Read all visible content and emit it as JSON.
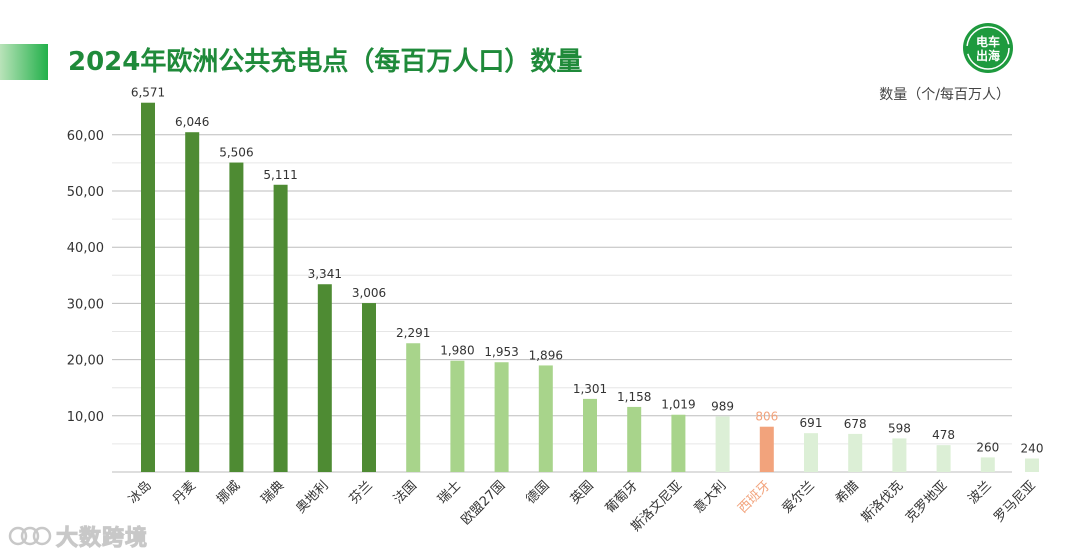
{
  "header": {
    "title": "2024年欧洲公共充电点（每百万人口）数量",
    "unit": "数量（个/每百万人）",
    "logo_text": "电车出海",
    "watermark": "大数跨境"
  },
  "colors": {
    "dark_green": "#4e8b33",
    "light_green": "#a8d48b",
    "pale_green": "#dcefd6",
    "highlight": "#f2a37c",
    "grid": "#cfcfcf",
    "title_green": "#1f8a3a"
  },
  "chart_data": {
    "type": "bar",
    "title": "2024年欧洲公共充电点（每百万人口）数量",
    "ylabel": "数量（个/每百万人）",
    "ylim": [
      0,
      6571
    ],
    "yticks": [
      "10,00",
      "20,00",
      "30,00",
      "40,00",
      "50,00",
      "60,00"
    ],
    "categories": [
      "冰岛",
      "丹麦",
      "挪威",
      "瑞典",
      "奥地利",
      "芬兰",
      "法国",
      "瑞士",
      "欧盟27国",
      "德国",
      "英国",
      "葡萄牙",
      "斯洛文尼亚",
      "意大利",
      "西班牙",
      "爱尔兰",
      "希腊",
      "斯洛伐克",
      "克罗地亚",
      "波兰",
      "罗马尼亚"
    ],
    "values": [
      6571,
      6046,
      5506,
      5111,
      3341,
      3006,
      2291,
      1980,
      1953,
      1896,
      1301,
      1158,
      1019,
      989,
      806,
      691,
      678,
      598,
      478,
      260,
      240
    ],
    "value_labels": [
      "6,571",
      "6,046",
      "5,506",
      "5,111",
      "3,341",
      "3,006",
      "2,291",
      "1,980",
      "1,953",
      "1,896",
      "1,301",
      "1,158",
      "1,019",
      "989",
      "806",
      "691",
      "678",
      "598",
      "478",
      "260",
      "240"
    ],
    "tiers": [
      "dark",
      "dark",
      "dark",
      "dark",
      "dark",
      "dark",
      "light",
      "light",
      "light",
      "light",
      "light",
      "light",
      "light",
      "pale",
      "highlight",
      "pale",
      "pale",
      "pale",
      "pale",
      "pale",
      "pale"
    ],
    "grid": true
  }
}
